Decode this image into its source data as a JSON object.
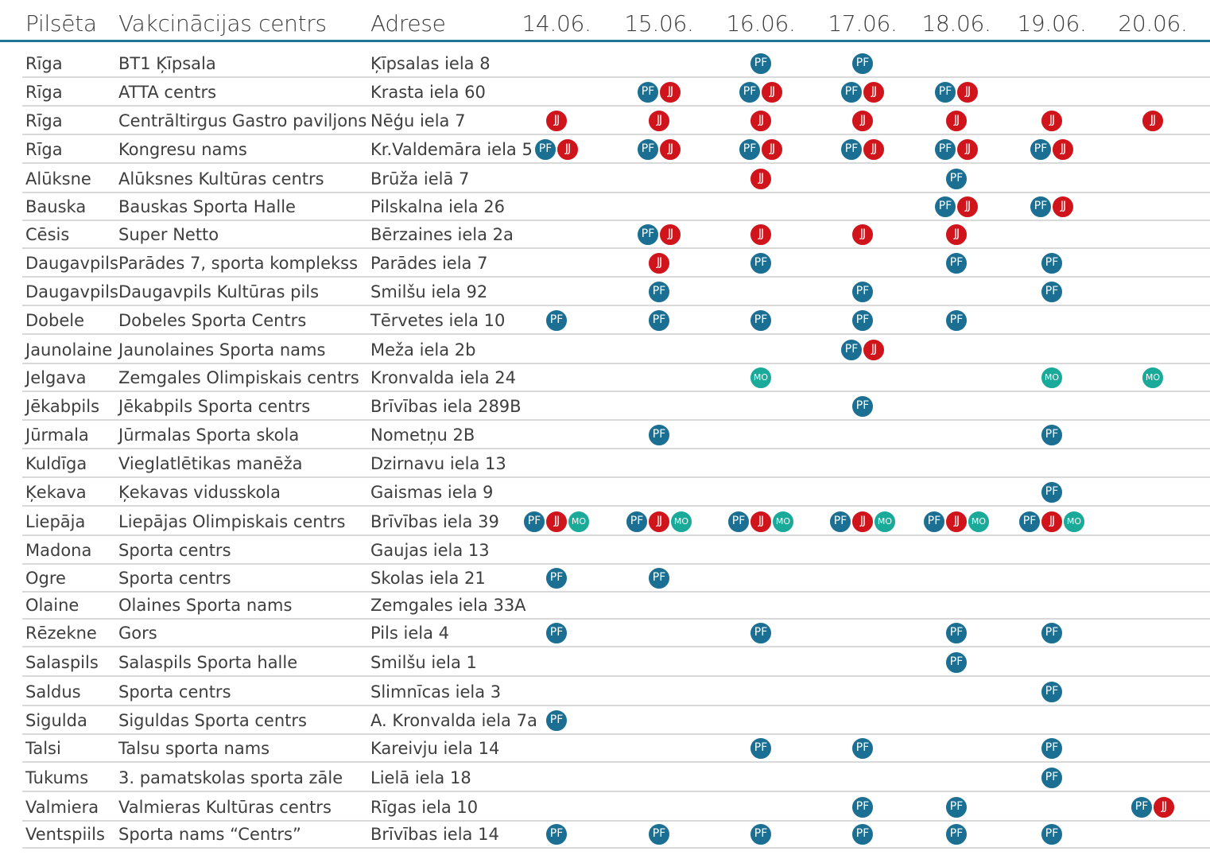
{
  "header": {
    "city": "Pilsēta",
    "center": "Vakcinācijas centrs",
    "address": "Adrese",
    "dates": [
      "14.06.",
      "15.06.",
      "16.06.",
      "17.06.",
      "18.06.",
      "19.06.",
      "20.06."
    ]
  },
  "vaccines": {
    "PF": {
      "label": "PF",
      "color": "#1b6f93"
    },
    "JJ": {
      "label": "JJ",
      "color": "#d0141c"
    },
    "MO": {
      "label": "MO",
      "color": "#1aaa9a"
    }
  },
  "rows": [
    {
      "city": "Rīga",
      "center": "BT1 Ķīpsala",
      "address": "Ķīpsalas iela 8",
      "schedule": [
        [],
        [],
        [
          "PF"
        ],
        [
          "PF"
        ],
        [],
        [],
        []
      ]
    },
    {
      "city": "Rīga",
      "center": "ATTA centrs",
      "address": "Krasta iela 60",
      "schedule": [
        [],
        [
          "PF",
          "JJ"
        ],
        [
          "PF",
          "JJ"
        ],
        [
          "PF",
          "JJ"
        ],
        [
          "PF",
          "JJ"
        ],
        [],
        []
      ]
    },
    {
      "city": "Rīga",
      "center": "Centrāltirgus Gastro paviljons",
      "address": "Nēģu iela 7",
      "schedule": [
        [
          "JJ"
        ],
        [
          "JJ"
        ],
        [
          "JJ"
        ],
        [
          "JJ"
        ],
        [
          "JJ"
        ],
        [
          "JJ"
        ],
        [
          "JJ"
        ]
      ]
    },
    {
      "city": "Rīga",
      "center": "Kongresu nams",
      "address": "Kr.Valdemāra iela 5",
      "schedule": [
        [
          "PF",
          "JJ"
        ],
        [
          "PF",
          "JJ"
        ],
        [
          "PF",
          "JJ"
        ],
        [
          "PF",
          "JJ"
        ],
        [
          "PF",
          "JJ"
        ],
        [
          "PF",
          "JJ"
        ],
        []
      ]
    },
    {
      "city": "Alūksne",
      "center": "Alūksnes Kultūras centrs",
      "address": "Brūža ielā 7",
      "schedule": [
        [],
        [],
        [
          "JJ"
        ],
        [],
        [
          "PF"
        ],
        [],
        []
      ]
    },
    {
      "city": "Bauska",
      "center": "Bauskas Sporta Halle",
      "address": "Pilskalna iela 26",
      "schedule": [
        [],
        [],
        [],
        [],
        [
          "PF",
          "JJ"
        ],
        [
          "PF",
          "JJ"
        ],
        []
      ]
    },
    {
      "city": "Cēsis",
      "center": "Super Netto",
      "address": "Bērzaines iela 2a",
      "schedule": [
        [],
        [
          "PF",
          "JJ"
        ],
        [
          "JJ"
        ],
        [
          "JJ"
        ],
        [
          "JJ"
        ],
        [],
        []
      ]
    },
    {
      "city": "Daugavpils",
      "center": "Parādes 7, sporta komplekss",
      "address": "Parādes iela 7",
      "schedule": [
        [],
        [
          "JJ"
        ],
        [
          "PF"
        ],
        [],
        [
          "PF"
        ],
        [
          "PF"
        ],
        []
      ]
    },
    {
      "city": "Daugavpils",
      "center": "Daugavpils Kultūras pils",
      "address": "Smilšu iela 92",
      "schedule": [
        [],
        [
          "PF"
        ],
        [],
        [
          "PF"
        ],
        [],
        [
          "PF"
        ],
        []
      ]
    },
    {
      "city": "Dobele",
      "center": "Dobeles Sporta Centrs",
      "address": "Tērvetes iela 10",
      "schedule": [
        [
          "PF"
        ],
        [
          "PF"
        ],
        [
          "PF"
        ],
        [
          "PF"
        ],
        [
          "PF"
        ],
        [],
        []
      ]
    },
    {
      "city": "Jaunolaine",
      "center": "Jaunolaines Sporta nams",
      "address": "Meža iela 2b",
      "schedule": [
        [],
        [],
        [],
        [
          "PF",
          "JJ"
        ],
        [],
        [],
        []
      ]
    },
    {
      "city": "Jelgava",
      "center": "Zemgales Olimpiskais centrs",
      "address": "Kronvalda iela 24",
      "schedule": [
        [],
        [],
        [
          "MO"
        ],
        [],
        [],
        [
          "MO"
        ],
        [
          "MO"
        ]
      ]
    },
    {
      "city": "Jēkabpils",
      "center": "Jēkabpils Sporta centrs",
      "address": "Brīvības iela 289B",
      "schedule": [
        [],
        [],
        [],
        [
          "PF"
        ],
        [],
        [],
        []
      ]
    },
    {
      "city": "Jūrmala",
      "center": "Jūrmalas Sporta skola",
      "address": "Nometņu 2B",
      "schedule": [
        [],
        [
          "PF"
        ],
        [],
        [],
        [],
        [
          "PF"
        ],
        []
      ]
    },
    {
      "city": "Kuldīga",
      "center": "Vieglatlētikas manēža",
      "address": "Dzirnavu iela 13",
      "schedule": [
        [],
        [],
        [],
        [],
        [],
        [],
        []
      ]
    },
    {
      "city": "Ķekava",
      "center": "Ķekavas vidusskola",
      "address": "Gaismas iela 9",
      "schedule": [
        [],
        [],
        [],
        [],
        [],
        [
          "PF"
        ],
        []
      ]
    },
    {
      "city": "Liepāja",
      "center": "Liepājas Olimpiskais centrs",
      "address": "Brīvības iela 39",
      "schedule": [
        [
          "PF",
          "JJ",
          "MO"
        ],
        [
          "PF",
          "JJ",
          "MO"
        ],
        [
          "PF",
          "JJ",
          "MO"
        ],
        [
          "PF",
          "JJ",
          "MO"
        ],
        [
          "PF",
          "JJ",
          "MO"
        ],
        [
          "PF",
          "JJ",
          "MO"
        ],
        []
      ]
    },
    {
      "city": "Madona",
      "center": "Sporta centrs",
      "address": "Gaujas iela 13",
      "schedule": [
        [],
        [],
        [],
        [],
        [],
        [],
        []
      ]
    },
    {
      "city": "Ogre",
      "center": "Sporta centrs",
      "address": "Skolas iela 21",
      "schedule": [
        [
          "PF"
        ],
        [
          "PF"
        ],
        [],
        [],
        [],
        [],
        []
      ]
    },
    {
      "city": "Olaine",
      "center": "Olaines Sporta nams",
      "address": "Zemgales iela 33A",
      "schedule": [
        [],
        [],
        [],
        [],
        [],
        [],
        []
      ]
    },
    {
      "city": "Rēzekne",
      "center": "Gors",
      "address": "Pils iela 4",
      "schedule": [
        [
          "PF"
        ],
        [],
        [
          "PF"
        ],
        [],
        [
          "PF"
        ],
        [
          "PF"
        ],
        []
      ]
    },
    {
      "city": "Salaspils",
      "center": "Salaspils Sporta halle",
      "address": "Smilšu iela 1",
      "schedule": [
        [],
        [],
        [],
        [],
        [
          "PF"
        ],
        [],
        []
      ]
    },
    {
      "city": "Saldus",
      "center": "Sporta centrs",
      "address": "Slimnīcas iela 3",
      "schedule": [
        [],
        [],
        [],
        [],
        [],
        [
          "PF"
        ],
        []
      ]
    },
    {
      "city": "Sigulda",
      "center": "Siguldas Sporta centrs",
      "address": "A. Kronvalda iela 7a",
      "schedule": [
        [
          "PF"
        ],
        [],
        [],
        [],
        [],
        [],
        []
      ]
    },
    {
      "city": "Talsi",
      "center": "Talsu sporta nams",
      "address": "Kareivju iela 14",
      "schedule": [
        [],
        [],
        [
          "PF"
        ],
        [
          "PF"
        ],
        [],
        [
          "PF"
        ],
        []
      ]
    },
    {
      "city": "Tukums",
      "center": "3. pamatskolas sporta zāle",
      "address": "Lielā iela 18",
      "schedule": [
        [],
        [],
        [],
        [],
        [],
        [
          "PF"
        ],
        []
      ]
    },
    {
      "city": "Valmiera",
      "center": "Valmieras Kultūras centrs",
      "address": "Rīgas iela 10",
      "schedule": [
        [],
        [],
        [],
        [
          "PF"
        ],
        [
          "PF"
        ],
        [],
        [
          "PF",
          "JJ"
        ]
      ]
    },
    {
      "city": "Ventspiils",
      "center": "Sporta nams “Centrs”",
      "address": "Brīvības iela 14",
      "schedule": [
        [
          "PF"
        ],
        [
          "PF"
        ],
        [
          "PF"
        ],
        [
          "PF"
        ],
        [
          "PF"
        ],
        [
          "PF"
        ],
        []
      ]
    }
  ]
}
